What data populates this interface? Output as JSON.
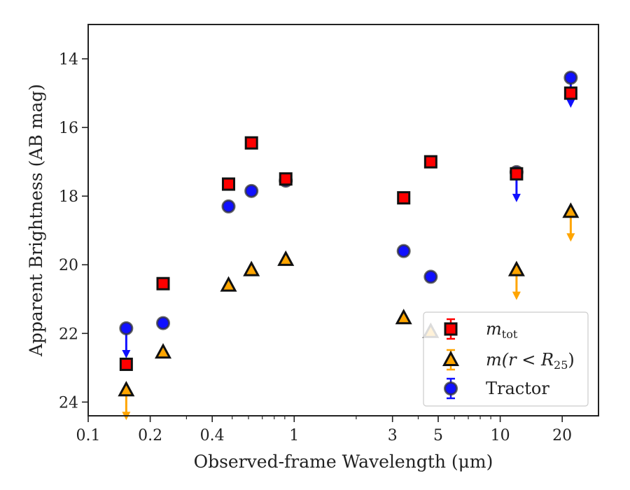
{
  "chart_data": {
    "type": "scatter",
    "xlabel": "Observed-frame Wavelength (μm)",
    "ylabel": "Apparent Brightness (AB mag)",
    "xscale": "log",
    "xlim": [
      0.1,
      30
    ],
    "ylim": [
      24.4,
      13
    ],
    "y_inverted": true,
    "x_ticks": [
      0.1,
      0.2,
      0.4,
      1,
      3,
      5,
      10,
      20
    ],
    "x_tick_labels": [
      "0.1",
      "0.2",
      "0.4",
      "1",
      "3",
      "5",
      "10",
      "20"
    ],
    "y_ticks": [
      14,
      16,
      18,
      20,
      22,
      24
    ],
    "y_tick_labels": [
      "14",
      "16",
      "18",
      "20",
      "22",
      "24"
    ],
    "legend": {
      "placement": "lower-right",
      "entries": [
        {
          "label_main": "m",
          "label_sub": "tot",
          "series": "m_tot"
        },
        {
          "label_main": "m(r < R",
          "label_sub": "25",
          "label_end": ")",
          "series": "m_r25"
        },
        {
          "label_main": "Tractor",
          "series": "tractor"
        }
      ]
    },
    "series": [
      {
        "key": "m_tot",
        "marker": "square",
        "color": "#ff0000",
        "edge_color": "#111111",
        "points": [
          {
            "x": 0.153,
            "y": 22.9,
            "upper_limit": false
          },
          {
            "x": 0.231,
            "y": 20.55,
            "upper_limit": false
          },
          {
            "x": 0.48,
            "y": 17.65,
            "upper_limit": false
          },
          {
            "x": 0.62,
            "y": 16.45,
            "upper_limit": false
          },
          {
            "x": 0.91,
            "y": 17.5,
            "upper_limit": false
          },
          {
            "x": 3.4,
            "y": 18.05,
            "upper_limit": false
          },
          {
            "x": 4.6,
            "y": 17.0,
            "upper_limit": false
          },
          {
            "x": 12.0,
            "y": 17.35,
            "upper_limit": false
          },
          {
            "x": 22.0,
            "y": 15.0,
            "upper_limit": false
          }
        ]
      },
      {
        "key": "m_r25",
        "marker": "triangle",
        "color": "#ffa500",
        "edge_color": "#111111",
        "points": [
          {
            "x": 0.153,
            "y": 23.65,
            "upper_limit": true
          },
          {
            "x": 0.231,
            "y": 22.55,
            "upper_limit": false
          },
          {
            "x": 0.48,
            "y": 20.6,
            "upper_limit": false
          },
          {
            "x": 0.62,
            "y": 20.15,
            "upper_limit": false
          },
          {
            "x": 0.91,
            "y": 19.85,
            "upper_limit": false
          },
          {
            "x": 3.4,
            "y": 21.55,
            "upper_limit": false
          },
          {
            "x": 4.6,
            "y": 21.95,
            "upper_limit": false
          },
          {
            "x": 12.0,
            "y": 20.15,
            "upper_limit": true
          },
          {
            "x": 22.0,
            "y": 18.45,
            "upper_limit": true
          }
        ]
      },
      {
        "key": "tractor",
        "marker": "circle",
        "color": "#1010ff",
        "edge_color": "#333333",
        "points": [
          {
            "x": 0.153,
            "y": 21.85,
            "upper_limit": true
          },
          {
            "x": 0.231,
            "y": 21.7,
            "upper_limit": false
          },
          {
            "x": 0.48,
            "y": 18.3,
            "upper_limit": false
          },
          {
            "x": 0.62,
            "y": 17.85,
            "upper_limit": false
          },
          {
            "x": 0.91,
            "y": 17.55,
            "upper_limit": false
          },
          {
            "x": 3.4,
            "y": 19.6,
            "upper_limit": false
          },
          {
            "x": 4.6,
            "y": 20.35,
            "upper_limit": false
          },
          {
            "x": 12.0,
            "y": 17.3,
            "upper_limit": true
          },
          {
            "x": 22.0,
            "y": 14.55,
            "upper_limit": true
          }
        ]
      }
    ]
  }
}
